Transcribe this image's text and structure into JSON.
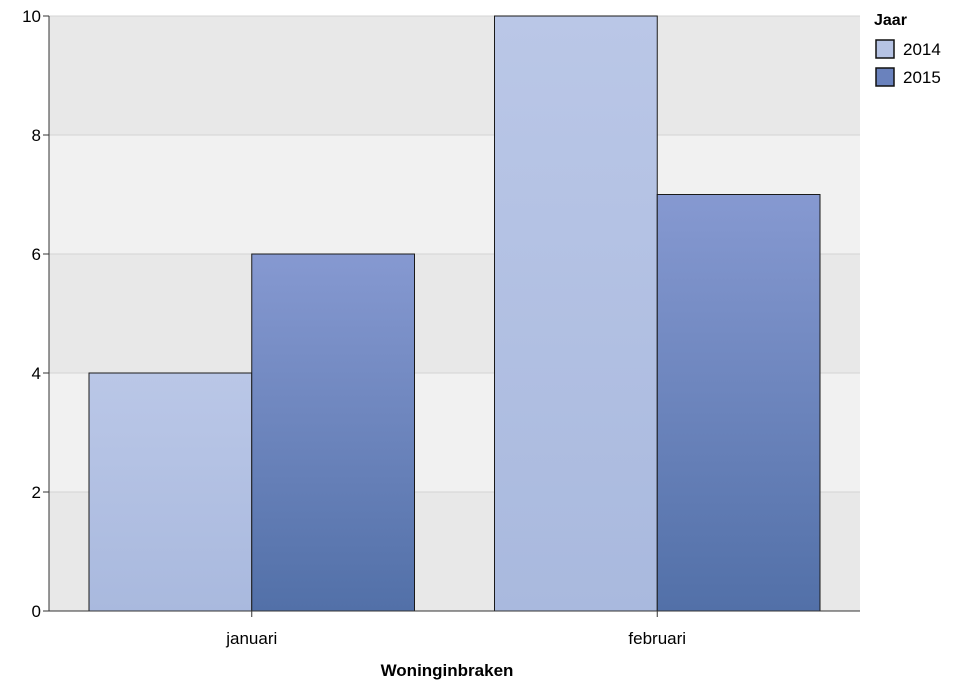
{
  "chart_data": {
    "type": "bar",
    "xlabel": "Woninginbraken",
    "ylabel": "",
    "categories": [
      "januari",
      "februari"
    ],
    "series": [
      {
        "name": "2014",
        "values": [
          4,
          10
        ]
      },
      {
        "name": "2015",
        "values": [
          6,
          7
        ]
      }
    ],
    "ylim": [
      0,
      10
    ],
    "yticks": [
      0,
      2,
      4,
      6,
      8,
      10
    ],
    "grid": true,
    "legend": {
      "title": "Jaar",
      "position": "top-right"
    },
    "colors": {
      "series_2014_top": "#b9c6e6",
      "series_2014_bottom": "#aabad e",
      "series_2015_top": "#8498d0",
      "series_2015_bottom": "#5470a8",
      "band_dark": "#e8e8e8",
      "band_light": "#f1f1f1",
      "gridline": "#d6d6d6",
      "axis": "#333333"
    }
  }
}
